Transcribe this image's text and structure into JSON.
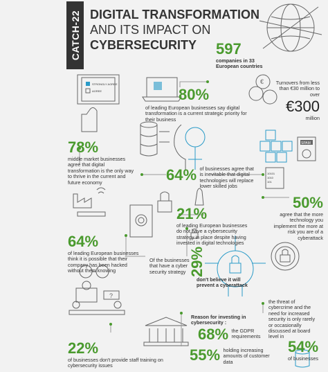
{
  "tag": "CATCH-22",
  "title": {
    "line1": "DIGITAL TRANSFORMATION",
    "line2": "AND ITS IMPACT ON",
    "line3": "CYBERSECURITY"
  },
  "companies": {
    "value": "597",
    "text": "companies in 33 European countries"
  },
  "turnover": {
    "text": "Turnovers from less than €30 million to over",
    "value": "€300",
    "unit": "million"
  },
  "stat80": {
    "value": "80%",
    "text": "of leading European businesses say digital transformation is a current strategic priority for their business"
  },
  "stat78": {
    "value": "78%",
    "text": "middle market businesses agree that digital transformation is the only way to thrive in the current and future economy"
  },
  "stat64a": {
    "value": "64%",
    "text": "of businesses agree that is inevitable that digital technologies will replace lower skilled jobs"
  },
  "stat21": {
    "value": "21%",
    "text": "of leading European businesses do not have a cybersecurity strategy in place despite having invested in digital technologies"
  },
  "stat50": {
    "value": "50%",
    "text": "agree that the more technology you implement the more at risk you are of a cyberattack"
  },
  "stat64b": {
    "value": "64%",
    "text": "of leading European businesses think it is possible that their company has been hacked without them knowing"
  },
  "stat29": {
    "pre": "Of the businesses that have a cyber security strategy",
    "value": "29%",
    "text": "don't believe it will prevent a cyberattack"
  },
  "stat54": {
    "text": "the threat of cybercrime and the need for increased security is only rarely or occasionally discussed at board level in",
    "value": "54%",
    "tail": "of businesses"
  },
  "stat68": {
    "pre": "Reason for investing in cybersecurity :",
    "value": "68%",
    "text": "the GDPR requirements"
  },
  "stat55": {
    "value": "55%",
    "text": "holding increasing amounts of customer data"
  },
  "stat22": {
    "value": "22%",
    "text": "of businesses don't provide staff training on cybersecurity issues"
  },
  "icons": {
    "survey": {
      "label1": "STRONGLY AGREE",
      "label2": "AGREE"
    },
    "spam": "SPAM",
    "binary": "10101 1010 101"
  },
  "colors": {
    "accent": "#4a9a2e",
    "dark": "#333333",
    "line": "#2a9bc8"
  }
}
